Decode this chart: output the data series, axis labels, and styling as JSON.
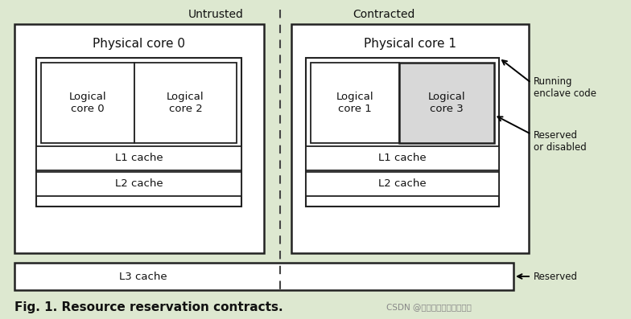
{
  "bg_color": "#dde8d0",
  "box_color": "#ffffff",
  "box_edge_color": "#222222",
  "dashed_line_color": "#444444",
  "text_color": "#111111",
  "fig_caption": "Fig. 1. Resource reservation contracts.",
  "watermark": "CSDN @粥粥粥少女的柠发条鸟",
  "label_untrusted": "Untrusted",
  "label_contracted": "Contracted",
  "label_phys0": "Physical core 0",
  "label_phys1": "Physical core 1",
  "label_log0": "Logical\ncore 0",
  "label_log2": "Logical\ncore 2",
  "label_log1": "Logical\ncore 1",
  "label_log3": "Logical\ncore 3",
  "label_l1": "L1 cache",
  "label_l2": "L2 cache",
  "label_l3": "L3 cache",
  "label_running": "Running\nenclave code",
  "label_reserved_disabled": "Reserved\nor disabled",
  "label_reserved": "Reserved",
  "reserved_fill": "#d8d8d8",
  "font_size_main": 9.5,
  "font_size_caption": 11,
  "font_size_small": 8.5
}
